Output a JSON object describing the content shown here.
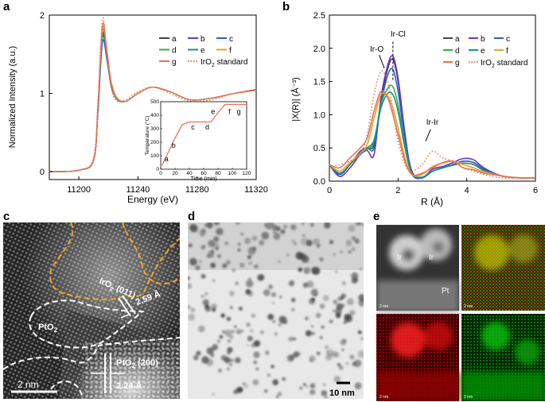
{
  "panels": {
    "a": "a",
    "b": "b",
    "c": "c",
    "d": "d",
    "e": "e"
  },
  "chart_data": [
    {
      "type": "line",
      "panel": "a",
      "xlabel": "Energy (eV)",
      "ylabel": "Normalized Intensity (a.u.)",
      "xlim": [
        11180,
        11320
      ],
      "ylim": [
        -0.1,
        2.0
      ],
      "x_ticks": [
        "11200",
        "11240",
        "11280",
        "11320"
      ],
      "y_ticks": [
        "0",
        "1",
        "2"
      ],
      "legend": {
        "position": "top-right",
        "entries": [
          "a",
          "b",
          "c",
          "d",
          "e",
          "f",
          "g",
          "IrO2 standard"
        ]
      },
      "series": [
        {
          "name": "a",
          "color": "#444444",
          "peak": 1.72,
          "x": [
            11180,
            11200,
            11210,
            11213,
            11216,
            11219,
            11222,
            11226,
            11232,
            11240,
            11250,
            11262,
            11275,
            11290,
            11305,
            11320
          ],
          "y": [
            0,
            0.02,
            0.15,
            0.8,
            1.72,
            1.45,
            1.1,
            0.92,
            0.9,
            1.0,
            1.08,
            1.02,
            0.92,
            0.94,
            1.0,
            1.04
          ]
        },
        {
          "name": "b",
          "color": "#6a35c9",
          "peak": 1.75,
          "x": [
            11180,
            11200,
            11210,
            11213,
            11216,
            11219,
            11222,
            11226,
            11232,
            11240,
            11250,
            11262,
            11275,
            11290,
            11305,
            11320
          ],
          "y": [
            0,
            0.02,
            0.15,
            0.82,
            1.75,
            1.46,
            1.1,
            0.92,
            0.9,
            1.0,
            1.08,
            1.02,
            0.92,
            0.94,
            1.0,
            1.04
          ]
        },
        {
          "name": "c",
          "color": "#2c5fc9",
          "peak": 1.66,
          "x": [
            11180,
            11200,
            11210,
            11213,
            11216,
            11219,
            11222,
            11226,
            11232,
            11240,
            11250,
            11262,
            11275,
            11290,
            11305,
            11320
          ],
          "y": [
            0,
            0.02,
            0.15,
            0.78,
            1.66,
            1.42,
            1.08,
            0.92,
            0.9,
            1.0,
            1.08,
            1.02,
            0.92,
            0.94,
            1.0,
            1.05
          ]
        },
        {
          "name": "d",
          "color": "#3aa84a",
          "peak": 1.8,
          "x": [
            11180,
            11200,
            11210,
            11213,
            11216,
            11219,
            11222,
            11226,
            11232,
            11240,
            11250,
            11262,
            11275,
            11290,
            11305,
            11320
          ],
          "y": [
            0,
            0.02,
            0.15,
            0.84,
            1.8,
            1.5,
            1.12,
            0.93,
            0.9,
            1.0,
            1.08,
            1.02,
            0.92,
            0.94,
            1.0,
            1.04
          ]
        },
        {
          "name": "e",
          "color": "#1f8c8c",
          "peak": 1.76,
          "x": [
            11180,
            11200,
            11210,
            11213,
            11216,
            11219,
            11222,
            11226,
            11232,
            11240,
            11250,
            11262,
            11275,
            11290,
            11305,
            11320
          ],
          "y": [
            0,
            0.02,
            0.15,
            0.82,
            1.76,
            1.47,
            1.1,
            0.92,
            0.9,
            1.0,
            1.08,
            1.02,
            0.92,
            0.94,
            1.0,
            1.04
          ]
        },
        {
          "name": "f",
          "color": "#e0a52a",
          "peak": 1.84,
          "x": [
            11180,
            11200,
            11210,
            11213,
            11216,
            11219,
            11222,
            11226,
            11232,
            11240,
            11250,
            11262,
            11275,
            11290,
            11305,
            11320
          ],
          "y": [
            0,
            0.02,
            0.16,
            0.86,
            1.84,
            1.52,
            1.12,
            0.93,
            0.9,
            1.0,
            1.08,
            1.02,
            0.92,
            0.94,
            1.0,
            1.04
          ]
        },
        {
          "name": "g",
          "color": "#f07050",
          "peak": 1.88,
          "x": [
            11180,
            11200,
            11210,
            11213,
            11216,
            11219,
            11222,
            11226,
            11232,
            11240,
            11250,
            11262,
            11275,
            11290,
            11305,
            11320
          ],
          "y": [
            0,
            0.02,
            0.16,
            0.88,
            1.88,
            1.55,
            1.14,
            0.94,
            0.9,
            1.0,
            1.08,
            1.02,
            0.92,
            0.94,
            1.0,
            1.04
          ]
        },
        {
          "name": "IrO2 standard",
          "color": "#f07050",
          "dotted": true,
          "x": [
            11180,
            11200,
            11210,
            11213,
            11216,
            11219,
            11222,
            11226,
            11232,
            11240,
            11250,
            11262,
            11275,
            11290,
            11305,
            11320
          ],
          "y": [
            0,
            0.02,
            0.18,
            0.95,
            1.95,
            1.5,
            1.05,
            0.9,
            0.92,
            1.02,
            1.08,
            1.0,
            0.9,
            0.92,
            1.0,
            1.05
          ]
        }
      ],
      "inset": {
        "xlabel": "Time (min)",
        "ylabel": "Temperature (°C)",
        "xlim": [
          0,
          120
        ],
        "ylim": [
          0,
          500
        ],
        "x_ticks": [
          "0",
          "20",
          "40",
          "60",
          "80",
          "100",
          "120"
        ],
        "y_ticks": [
          "0",
          "100",
          "200",
          "300",
          "400",
          "500"
        ],
        "x": [
          0,
          2,
          10,
          20,
          30,
          40,
          50,
          60,
          70,
          80,
          90,
          100,
          110,
          120
        ],
        "y": [
          30,
          30,
          120,
          230,
          330,
          350,
          350,
          350,
          350,
          420,
          480,
          480,
          480,
          480
        ],
        "labels": [
          {
            "text": "a",
            "x": 8,
            "y": 60
          },
          {
            "text": "b",
            "x": 18,
            "y": 160
          },
          {
            "text": "c",
            "x": 45,
            "y": 295
          },
          {
            "text": "d",
            "x": 65,
            "y": 295
          },
          {
            "text": "e",
            "x": 73,
            "y": 410
          },
          {
            "text": "f",
            "x": 96,
            "y": 410
          },
          {
            "text": "g",
            "x": 109,
            "y": 410
          }
        ]
      }
    },
    {
      "type": "line",
      "panel": "b",
      "xlabel": "R (Å)",
      "ylabel": "|X(R)| (Å⁻³)",
      "xlim": [
        0,
        6
      ],
      "ylim": [
        0,
        2.5
      ],
      "x_ticks": [
        "0",
        "2",
        "4",
        "6"
      ],
      "y_ticks": [
        "0.0",
        "0.5",
        "1.0",
        "1.5",
        "2.0",
        "2.5"
      ],
      "legend": {
        "position": "top-right",
        "entries": [
          "a",
          "b",
          "c",
          "d",
          "e",
          "f",
          "g",
          "IrO2 standard"
        ]
      },
      "annotations": [
        {
          "text": "Ir-O",
          "x": 1.38,
          "y": 1.95
        },
        {
          "text": "Ir-Cl",
          "x": 2.0,
          "y": 2.18
        },
        {
          "text": "Ir-Ir",
          "x": 3.0,
          "y": 0.85
        }
      ],
      "series": [
        {
          "name": "a",
          "color": "#444444",
          "x": [
            0,
            0.3,
            0.6,
            0.9,
            1.1,
            1.3,
            1.5,
            1.7,
            1.85,
            2.0,
            2.2,
            2.4,
            2.7,
            3.0,
            3.3,
            3.6,
            3.9,
            4.2,
            4.5,
            5.0,
            5.5,
            6.0
          ],
          "y": [
            0.25,
            0.1,
            0.25,
            0.45,
            0.5,
            0.55,
            1.2,
            1.7,
            1.83,
            1.5,
            0.7,
            0.15,
            0.05,
            0.15,
            0.2,
            0.25,
            0.3,
            0.28,
            0.18,
            0.08,
            0.05,
            0.05
          ]
        },
        {
          "name": "b",
          "color": "#6a35c9",
          "x": [
            0,
            0.3,
            0.6,
            0.9,
            1.1,
            1.3,
            1.5,
            1.7,
            1.85,
            2.0,
            2.2,
            2.4,
            2.7,
            3.0,
            3.3,
            3.6,
            3.9,
            4.2,
            4.5,
            5.0,
            5.5,
            6.0
          ],
          "y": [
            0.25,
            0.07,
            0.2,
            0.4,
            0.46,
            0.4,
            1.25,
            1.75,
            1.88,
            1.55,
            0.72,
            0.12,
            0.05,
            0.18,
            0.22,
            0.28,
            0.34,
            0.32,
            0.2,
            0.08,
            0.05,
            0.05
          ]
        },
        {
          "name": "c",
          "color": "#2c5fc9",
          "x": [
            0,
            0.3,
            0.6,
            0.9,
            1.1,
            1.3,
            1.5,
            1.7,
            1.85,
            2.0,
            2.2,
            2.4,
            2.7,
            3.0,
            3.3,
            3.6,
            3.9,
            4.2,
            4.5,
            5.0,
            5.5,
            6.0
          ],
          "y": [
            0.25,
            0.1,
            0.25,
            0.45,
            0.5,
            0.5,
            1.15,
            1.6,
            1.68,
            1.35,
            0.62,
            0.12,
            0.05,
            0.15,
            0.2,
            0.25,
            0.3,
            0.28,
            0.18,
            0.08,
            0.05,
            0.05
          ]
        },
        {
          "name": "d",
          "color": "#3aa84a",
          "x": [
            0,
            0.3,
            0.6,
            0.9,
            1.1,
            1.3,
            1.5,
            1.7,
            1.85,
            2.0,
            2.2,
            2.4,
            2.7,
            3.0,
            3.3,
            3.6,
            3.9,
            4.2,
            4.5,
            5.0,
            5.5,
            6.0
          ],
          "y": [
            0.25,
            0.12,
            0.25,
            0.42,
            0.48,
            0.6,
            1.15,
            1.4,
            1.42,
            1.15,
            0.55,
            0.12,
            0.06,
            0.15,
            0.2,
            0.24,
            0.27,
            0.25,
            0.16,
            0.08,
            0.05,
            0.05
          ]
        },
        {
          "name": "e",
          "color": "#1f8c8c",
          "x": [
            0,
            0.3,
            0.6,
            0.9,
            1.1,
            1.3,
            1.5,
            1.7,
            1.85,
            2.0,
            2.2,
            2.4,
            2.7,
            3.0,
            3.3,
            3.6,
            3.9,
            4.2,
            4.5,
            5.0,
            5.5,
            6.0
          ],
          "y": [
            0.25,
            0.12,
            0.25,
            0.42,
            0.5,
            0.62,
            1.1,
            1.32,
            1.3,
            1.05,
            0.5,
            0.12,
            0.06,
            0.15,
            0.2,
            0.24,
            0.27,
            0.25,
            0.16,
            0.08,
            0.05,
            0.05
          ]
        },
        {
          "name": "f",
          "color": "#e0a52a",
          "x": [
            0,
            0.3,
            0.6,
            0.9,
            1.1,
            1.3,
            1.5,
            1.7,
            1.85,
            2.0,
            2.2,
            2.4,
            2.7,
            3.0,
            3.3,
            3.6,
            3.9,
            4.2,
            4.5,
            5.0,
            5.5,
            6.0
          ],
          "y": [
            0.25,
            0.15,
            0.28,
            0.42,
            0.55,
            0.95,
            1.3,
            1.28,
            1.1,
            0.8,
            0.35,
            0.1,
            0.1,
            0.22,
            0.27,
            0.3,
            0.25,
            0.2,
            0.14,
            0.08,
            0.05,
            0.05
          ]
        },
        {
          "name": "g",
          "color": "#f07050",
          "x": [
            0,
            0.3,
            0.6,
            0.9,
            1.1,
            1.3,
            1.5,
            1.7,
            1.85,
            2.0,
            2.2,
            2.4,
            2.7,
            3.0,
            3.3,
            3.6,
            3.9,
            4.2,
            4.5,
            5.0,
            5.5,
            6.0
          ],
          "y": [
            0.25,
            0.2,
            0.35,
            0.5,
            0.65,
            1.05,
            1.35,
            1.25,
            1.0,
            0.7,
            0.3,
            0.1,
            0.12,
            0.2,
            0.28,
            0.3,
            0.2,
            0.17,
            0.12,
            0.08,
            0.05,
            0.05
          ]
        },
        {
          "name": "IrO2 standard",
          "color": "#f07050",
          "dotted": true,
          "x": [
            0,
            0.3,
            0.6,
            0.9,
            1.1,
            1.3,
            1.5,
            1.7,
            1.85,
            2.0,
            2.2,
            2.4,
            2.7,
            3.0,
            3.3,
            3.6,
            3.9,
            4.2,
            4.5,
            5.0,
            5.5,
            6.0
          ],
          "y": [
            0.2,
            0.25,
            0.3,
            0.4,
            0.7,
            1.3,
            1.65,
            1.5,
            1.05,
            0.6,
            0.25,
            0.15,
            0.25,
            0.45,
            0.35,
            0.3,
            0.2,
            0.15,
            0.1,
            0.05,
            0.05,
            0.05
          ]
        }
      ]
    }
  ],
  "panel_c": {
    "iro2_label": "IrO",
    "iro2_sub": "2",
    "iro2_plane": " (011)",
    "pto2_label": "PtO",
    "pto2_sub": "2",
    "d1": "2.59 Å",
    "pto2_200_label": "PtO",
    "pto2_200_sub": "2",
    "pto2_200_plane": " (200)",
    "d2": "2.24 Å",
    "scale": "2 nm"
  },
  "panel_d": {
    "scale": "10 nm"
  },
  "panel_e": {
    "ir1": "Ir",
    "ir2": "Ir",
    "pt": "Pt",
    "scale": "2 nm"
  }
}
